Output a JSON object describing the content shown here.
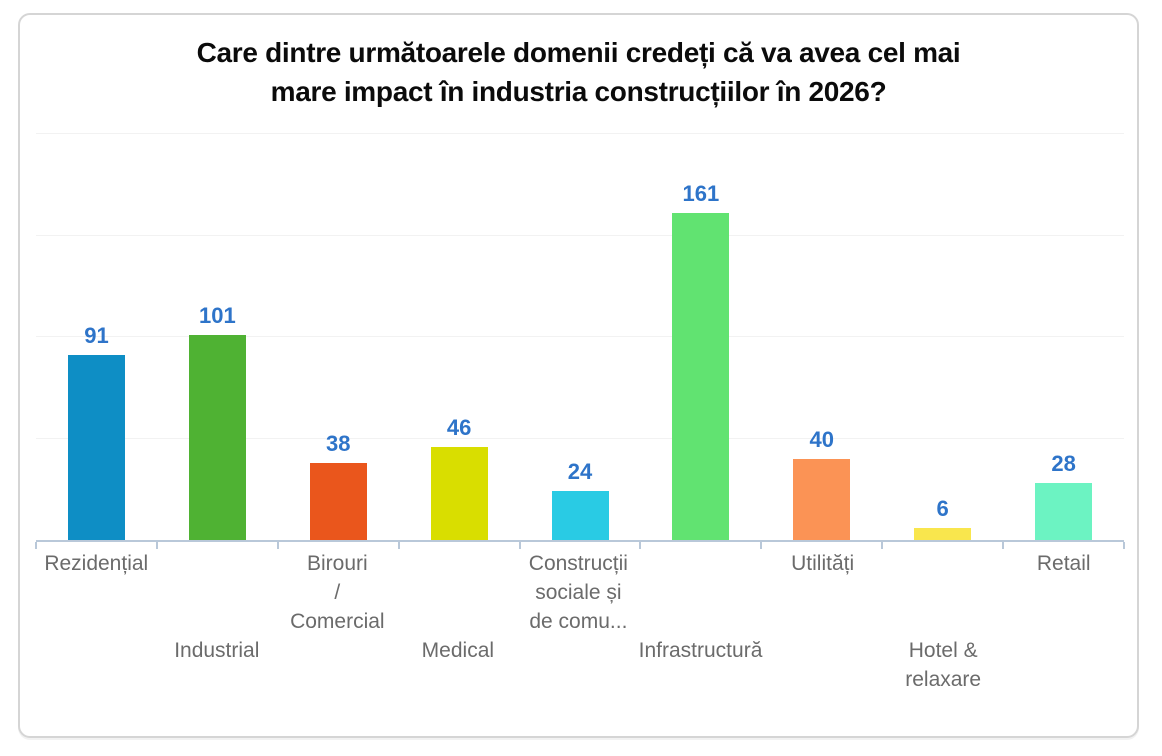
{
  "page": {
    "background": "#ffffff",
    "card_border_color": "#d5d5d5"
  },
  "chart_data": {
    "type": "bar",
    "title": "Care dintre următoarele domenii credeți că va avea cel mai mare impact în industria construcțiilor în 2026?",
    "title_lines": [
      "Care dintre următoarele domenii credeți că va avea cel mai",
      "mare impact în industria construcțiilor în 2026?"
    ],
    "categories": [
      "Rezidențial",
      "Industrial",
      "Birouri / Comercial",
      "Medical",
      "Construcții sociale și de comu...",
      "Infrastructură",
      "Utilități",
      "Hotel & relaxare",
      "Retail"
    ],
    "values": [
      91,
      101,
      38,
      46,
      24,
      161,
      40,
      6,
      28
    ],
    "bars": [
      {
        "label": "Rezidențial",
        "lines": [
          "Rezidențial"
        ],
        "value": 91,
        "color": "#0e8ec5",
        "label_row": 1
      },
      {
        "label": "Industrial",
        "lines": [
          "Industrial"
        ],
        "value": 101,
        "color": "#4fb233",
        "label_row": 2
      },
      {
        "label": "Birouri / Comercial",
        "lines": [
          "Birouri",
          "/",
          "Comercial"
        ],
        "value": 38,
        "color": "#ea561c",
        "label_row": 1
      },
      {
        "label": "Medical",
        "lines": [
          "Medical"
        ],
        "value": 46,
        "color": "#d9de00",
        "label_row": 2
      },
      {
        "label": "Construcții sociale și de comu...",
        "lines": [
          "Construcții",
          "sociale și",
          "de comu..."
        ],
        "value": 24,
        "color": "#29cbe4",
        "label_row": 1
      },
      {
        "label": "Infrastructură",
        "lines": [
          "Infrastructură"
        ],
        "value": 161,
        "color": "#61e371",
        "label_row": 2
      },
      {
        "label": "Utilități",
        "lines": [
          "Utilități"
        ],
        "value": 40,
        "color": "#fb9355",
        "label_row": 1
      },
      {
        "label": "Hotel & relaxare",
        "lines": [
          "Hotel &",
          "relaxare"
        ],
        "value": 6,
        "color": "#f9e64d",
        "label_row": 2
      },
      {
        "label": "Retail",
        "lines": [
          "Retail"
        ],
        "value": 28,
        "color": "#6cf3c2",
        "label_row": 1
      }
    ],
    "xlabel": "",
    "ylabel": "",
    "ylim": [
      0,
      200
    ],
    "gridline_values": [
      50,
      100,
      150,
      200
    ],
    "grid": true,
    "legend_position": "none",
    "value_label_color": "#2e74c9",
    "axis_color": "#b9c8d9",
    "axis_label_color": "#6b6b6b",
    "gridline_color": "#f2f2f2"
  }
}
